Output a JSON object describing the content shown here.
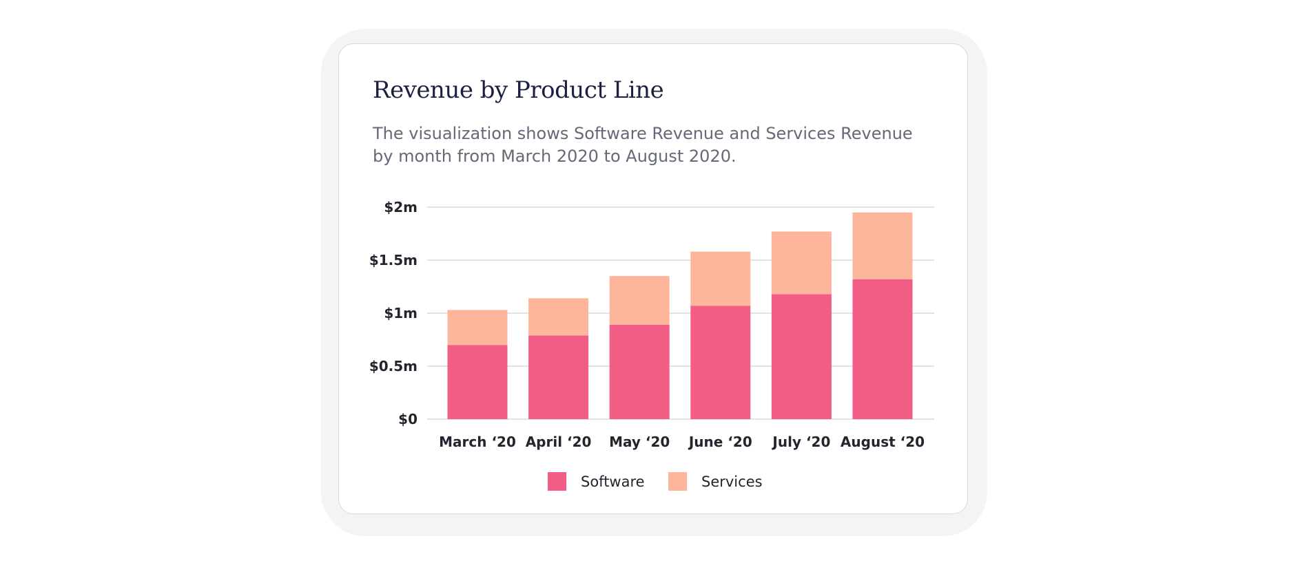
{
  "card": {
    "title": "Revenue by Product Line",
    "subtitle": "The visualization shows Software Revenue and Services Revenue by month from March 2020 to August 2020."
  },
  "colors": {
    "software": "#f25d85",
    "services": "#fdb59c",
    "grid": "#e3e3e6",
    "tick_text": "#22252d"
  },
  "chart_data": {
    "type": "bar",
    "stacked": true,
    "title": "Revenue by Product Line",
    "subtitle": "The visualization shows Software Revenue and Services Revenue by month from March 2020 to August 2020.",
    "categories": [
      "March ‘20",
      "April ‘20",
      "May ‘20",
      "June ‘20",
      "July ‘20",
      "August ‘20"
    ],
    "series": [
      {
        "name": "Software",
        "values": [
          0.7,
          0.79,
          0.89,
          1.07,
          1.18,
          1.32
        ]
      },
      {
        "name": "Services",
        "values": [
          0.33,
          0.35,
          0.46,
          0.51,
          0.59,
          0.63
        ]
      }
    ],
    "ylim": [
      0,
      2
    ],
    "yticks": [
      0,
      0.5,
      1,
      1.5,
      2
    ],
    "ytick_labels": [
      "$0",
      "$0.5m",
      "$1m",
      "$1.5m",
      "$2m"
    ],
    "xlabel": "",
    "ylabel": "",
    "grid": true,
    "legend": "bottom-center"
  }
}
